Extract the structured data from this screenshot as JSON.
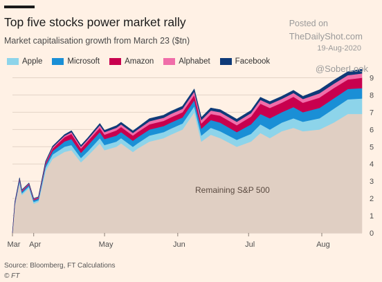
{
  "header": {
    "title": "Top five stocks power market rally",
    "subtitle": "Market capitalisation growth from March 23 ($tn)"
  },
  "watermark": {
    "posted": "Posted on",
    "site": "TheDailyShot.com",
    "date": "19-Aug-2020",
    "handle": "@SoberLook"
  },
  "footer": {
    "source": "Source: Bloomberg, FT Calculations",
    "copyright": "© FT"
  },
  "colors": {
    "background": "#fff1e5",
    "base": "#e0cfc3",
    "apple": "#8dd4ea",
    "microsoft": "#1a8fd6",
    "amazon": "#c8004e",
    "alphabet": "#f06da9",
    "facebook": "#0e3a78",
    "grid": "#e3d3c6"
  },
  "chart_data": {
    "type": "area",
    "stacked": true,
    "title": "Top five stocks power market rally",
    "subtitle": "Market capitalisation growth from March 23 ($tn)",
    "xlabel": "",
    "ylabel": "",
    "x_ticks": [
      "Mar",
      "Apr",
      "May",
      "Jun",
      "Jul",
      "Aug"
    ],
    "y_ticks": [
      0,
      1,
      2,
      3,
      4,
      5,
      6,
      7,
      8,
      9
    ],
    "ylim": [
      0,
      9.5
    ],
    "y_axis_side": "right",
    "grid": true,
    "legend_position": "top-left",
    "annotation": "Remaining S&P 500",
    "x": [
      "2020-03-23",
      "2020-03-24",
      "2020-03-26",
      "2020-03-27",
      "2020-03-30",
      "2020-04-01",
      "2020-04-03",
      "2020-04-06",
      "2020-04-09",
      "2020-04-14",
      "2020-04-17",
      "2020-04-21",
      "2020-04-24",
      "2020-04-29",
      "2020-05-01",
      "2020-05-06",
      "2020-05-08",
      "2020-05-13",
      "2020-05-15",
      "2020-05-20",
      "2020-05-26",
      "2020-05-29",
      "2020-06-03",
      "2020-06-08",
      "2020-06-11",
      "2020-06-15",
      "2020-06-19",
      "2020-06-26",
      "2020-07-02",
      "2020-07-06",
      "2020-07-10",
      "2020-07-15",
      "2020-07-20",
      "2020-07-24",
      "2020-07-31",
      "2020-08-06",
      "2020-08-12",
      "2020-08-18"
    ],
    "series": [
      {
        "name": "Remaining S&P 500",
        "values": [
          0.0,
          1.6,
          2.9,
          2.2,
          2.6,
          1.7,
          1.8,
          3.6,
          4.3,
          4.7,
          4.8,
          4.1,
          4.5,
          5.2,
          4.8,
          5.0,
          5.2,
          4.7,
          4.9,
          5.3,
          5.5,
          5.7,
          6.0,
          7.0,
          5.3,
          5.7,
          5.5,
          5.0,
          5.3,
          5.8,
          5.5,
          5.9,
          6.1,
          5.9,
          6.0,
          6.4,
          6.9,
          6.9
        ]
      },
      {
        "name": "Apple",
        "values": [
          0.0,
          0.05,
          0.1,
          0.1,
          0.1,
          0.1,
          0.1,
          0.2,
          0.25,
          0.3,
          0.3,
          0.25,
          0.25,
          0.3,
          0.3,
          0.3,
          0.3,
          0.3,
          0.3,
          0.35,
          0.35,
          0.35,
          0.35,
          0.35,
          0.35,
          0.4,
          0.4,
          0.4,
          0.45,
          0.5,
          0.5,
          0.5,
          0.55,
          0.55,
          0.65,
          0.8,
          0.85,
          0.9
        ]
      },
      {
        "name": "Microsoft",
        "values": [
          0.0,
          0.05,
          0.1,
          0.1,
          0.1,
          0.1,
          0.1,
          0.15,
          0.2,
          0.3,
          0.35,
          0.3,
          0.35,
          0.35,
          0.35,
          0.35,
          0.35,
          0.35,
          0.35,
          0.35,
          0.35,
          0.35,
          0.35,
          0.35,
          0.4,
          0.45,
          0.5,
          0.45,
          0.55,
          0.6,
          0.65,
          0.6,
          0.65,
          0.55,
          0.6,
          0.6,
          0.6,
          0.6
        ]
      },
      {
        "name": "Amazon",
        "values": [
          0.0,
          0.05,
          0.05,
          0.05,
          0.05,
          0.05,
          0.05,
          0.1,
          0.15,
          0.25,
          0.3,
          0.25,
          0.25,
          0.25,
          0.25,
          0.3,
          0.3,
          0.3,
          0.3,
          0.3,
          0.3,
          0.3,
          0.3,
          0.3,
          0.3,
          0.35,
          0.4,
          0.4,
          0.45,
          0.6,
          0.6,
          0.55,
          0.6,
          0.55,
          0.6,
          0.6,
          0.55,
          0.6
        ]
      },
      {
        "name": "Alphabet",
        "values": [
          0.0,
          0.03,
          0.03,
          0.03,
          0.03,
          0.03,
          0.03,
          0.05,
          0.07,
          0.08,
          0.1,
          0.1,
          0.1,
          0.15,
          0.15,
          0.15,
          0.15,
          0.15,
          0.15,
          0.18,
          0.18,
          0.2,
          0.2,
          0.2,
          0.2,
          0.2,
          0.2,
          0.2,
          0.2,
          0.22,
          0.22,
          0.22,
          0.22,
          0.22,
          0.25,
          0.25,
          0.25,
          0.25
        ]
      },
      {
        "name": "Facebook",
        "values": [
          0.0,
          0.02,
          0.02,
          0.02,
          0.02,
          0.02,
          0.02,
          0.05,
          0.06,
          0.07,
          0.08,
          0.08,
          0.08,
          0.1,
          0.1,
          0.12,
          0.12,
          0.12,
          0.12,
          0.15,
          0.15,
          0.15,
          0.15,
          0.15,
          0.15,
          0.15,
          0.15,
          0.15,
          0.15,
          0.15,
          0.15,
          0.15,
          0.15,
          0.15,
          0.2,
          0.2,
          0.2,
          0.25
        ]
      }
    ]
  }
}
